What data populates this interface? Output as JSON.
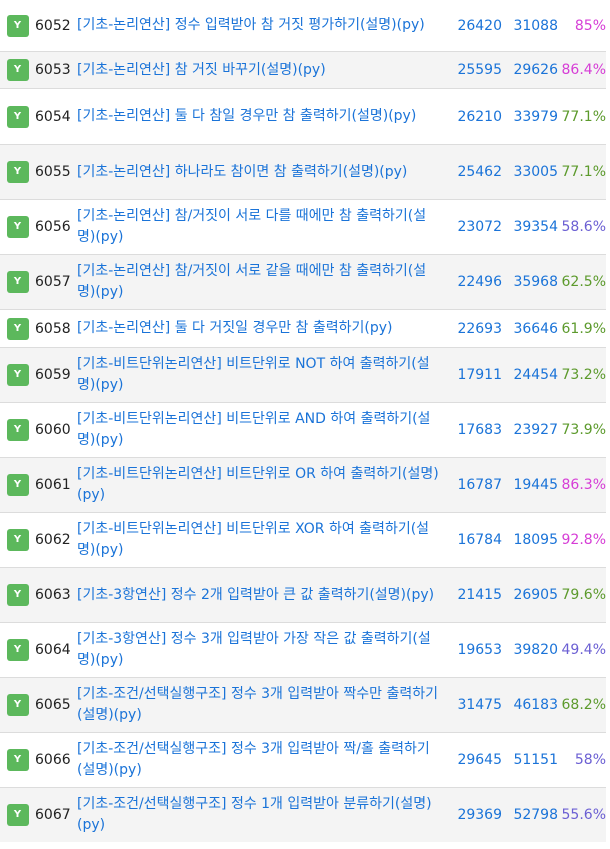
{
  "problems": [
    {
      "badge": "Y",
      "id": "6052",
      "title": "[기초-논리연산] 정수 입력받아 참 거짓 평가하기(설명)(py)",
      "solved": "26420",
      "submitted": "31088",
      "rate": "85%"
    },
    {
      "badge": "Y",
      "id": "6053",
      "title": "[기초-논리연산] 참 거짓 바꾸기(설명)(py)",
      "solved": "25595",
      "submitted": "29626",
      "rate": "86.4%"
    },
    {
      "badge": "Y",
      "id": "6054",
      "title": "[기초-논리연산] 둘 다 참일 경우만 참 출력하기(설명)(py)",
      "solved": "26210",
      "submitted": "33979",
      "rate": "77.1%"
    },
    {
      "badge": "Y",
      "id": "6055",
      "title": "[기초-논리연산] 하나라도 참이면 참 출력하기(설명)(py)",
      "solved": "25462",
      "submitted": "33005",
      "rate": "77.1%"
    },
    {
      "badge": "Y",
      "id": "6056",
      "title": "[기초-논리연산] 참/거짓이 서로 다를 때에만 참 출력하기(설명)(py)",
      "solved": "23072",
      "submitted": "39354",
      "rate": "58.6%"
    },
    {
      "badge": "Y",
      "id": "6057",
      "title": "[기초-논리연산] 참/거짓이 서로 같을 때에만 참 출력하기(설명)(py)",
      "solved": "22496",
      "submitted": "35968",
      "rate": "62.5%"
    },
    {
      "badge": "Y",
      "id": "6058",
      "title": "[기초-논리연산] 둘 다 거짓일 경우만 참 출력하기(py)",
      "solved": "22693",
      "submitted": "36646",
      "rate": "61.9%"
    },
    {
      "badge": "Y",
      "id": "6059",
      "title": "[기초-비트단위논리연산] 비트단위로 NOT 하여 출력하기(설명)(py)",
      "solved": "17911",
      "submitted": "24454",
      "rate": "73.2%"
    },
    {
      "badge": "Y",
      "id": "6060",
      "title": "[기초-비트단위논리연산] 비트단위로 AND 하여 출력하기(설명)(py)",
      "solved": "17683",
      "submitted": "23927",
      "rate": "73.9%"
    },
    {
      "badge": "Y",
      "id": "6061",
      "title": "[기초-비트단위논리연산] 비트단위로 OR 하여 출력하기(설명)(py)",
      "solved": "16787",
      "submitted": "19445",
      "rate": "86.3%"
    },
    {
      "badge": "Y",
      "id": "6062",
      "title": "[기초-비트단위논리연산] 비트단위로 XOR 하여 출력하기(설명)(py)",
      "solved": "16784",
      "submitted": "18095",
      "rate": "92.8%"
    },
    {
      "badge": "Y",
      "id": "6063",
      "title": "[기초-3항연산] 정수 2개 입력받아 큰 값 출력하기(설명)(py)",
      "solved": "21415",
      "submitted": "26905",
      "rate": "79.6%"
    },
    {
      "badge": "Y",
      "id": "6064",
      "title": "[기초-3항연산] 정수 3개 입력받아 가장 작은 값 출력하기(설명)(py)",
      "solved": "19653",
      "submitted": "39820",
      "rate": "49.4%"
    },
    {
      "badge": "Y",
      "id": "6065",
      "title": "[기초-조건/선택실행구조] 정수 3개 입력받아 짝수만 출력하기(설명)(py)",
      "solved": "31475",
      "submitted": "46183",
      "rate": "68.2%"
    },
    {
      "badge": "Y",
      "id": "6066",
      "title": "[기초-조건/선택실행구조] 정수 3개 입력받아 짝/홀 출력하기(설명)(py)",
      "solved": "29645",
      "submitted": "51151",
      "rate": "58%"
    },
    {
      "badge": "Y",
      "id": "6067",
      "title": "[기초-조건/선택실행구조] 정수 1개 입력받아 분류하기(설명)(py)",
      "solved": "29369",
      "submitted": "52798",
      "rate": "55.6%"
    }
  ],
  "colors": {
    "badge": "#5cb85c",
    "link": "#1a73d8",
    "rate_high": "#d63dd6",
    "rate_mid": "#5c9a2c",
    "rate_low": "#6b5fd3"
  }
}
